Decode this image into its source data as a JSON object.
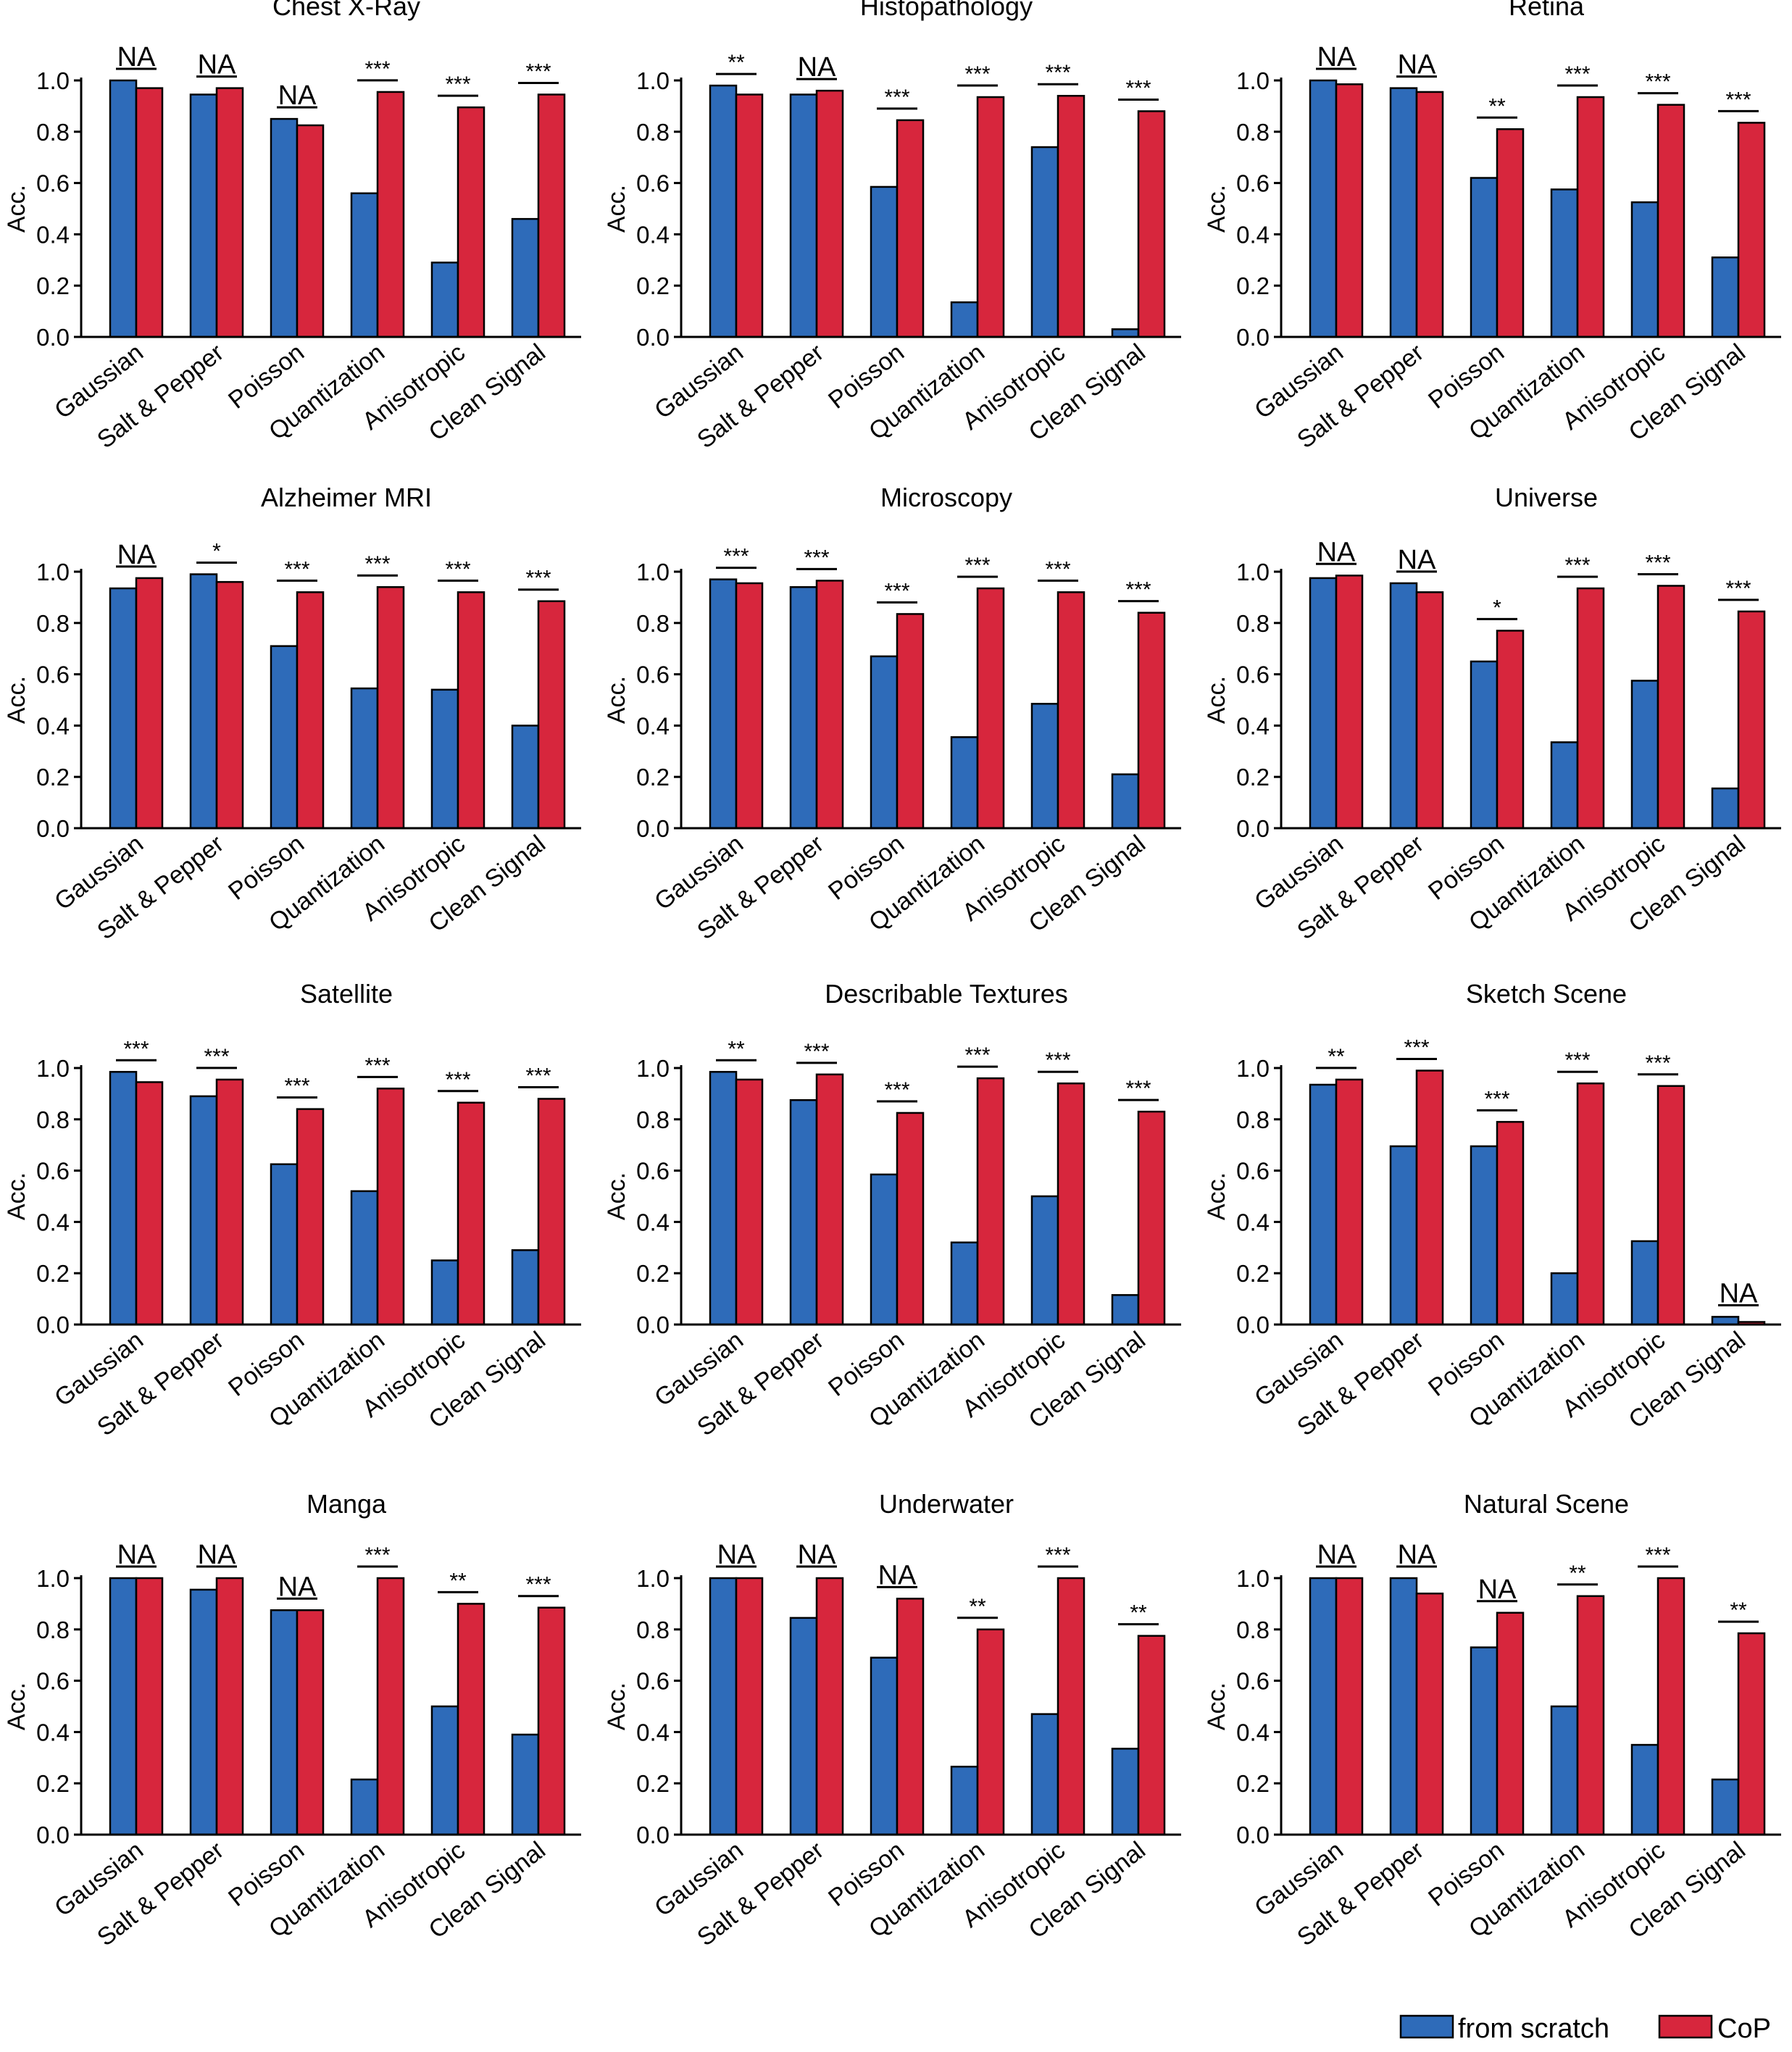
{
  "colors": {
    "from_scratch": "#2e6bb9",
    "cop": "#d7263d",
    "axis": "#000000"
  },
  "legend": {
    "from_scratch": "from scratch",
    "cop": "CoP"
  },
  "chart_data": [
    {
      "type": "bar",
      "title": "Chest X-Ray",
      "ylabel": "Acc.",
      "ylim": [
        0,
        1.0
      ],
      "yticks": [
        "0.0",
        "0.2",
        "0.4",
        "0.6",
        "0.8",
        "1.0"
      ],
      "categories": [
        "Gaussian",
        "Salt & Pepper",
        "Poisson",
        "Quantization",
        "Anisotropic",
        "Clean Signal"
      ],
      "series": [
        {
          "name": "from scratch",
          "values": [
            1.0,
            0.945,
            0.85,
            0.56,
            0.29,
            0.46
          ]
        },
        {
          "name": "CoP",
          "values": [
            0.97,
            0.97,
            0.825,
            0.955,
            0.895,
            0.945
          ]
        }
      ],
      "significance": [
        "NA",
        "NA",
        "NA",
        "***",
        "***",
        "***"
      ]
    },
    {
      "type": "bar",
      "title": "Histopathology",
      "ylabel": "Acc.",
      "ylim": [
        0,
        1.0
      ],
      "yticks": [
        "0.0",
        "0.2",
        "0.4",
        "0.6",
        "0.8",
        "1.0"
      ],
      "categories": [
        "Gaussian",
        "Salt & Pepper",
        "Poisson",
        "Quantization",
        "Anisotropic",
        "Clean Signal"
      ],
      "series": [
        {
          "name": "from scratch",
          "values": [
            0.98,
            0.945,
            0.585,
            0.135,
            0.74,
            0.03
          ]
        },
        {
          "name": "CoP",
          "values": [
            0.945,
            0.96,
            0.845,
            0.935,
            0.94,
            0.88
          ]
        }
      ],
      "significance": [
        "**",
        "NA",
        "***",
        "***",
        "***",
        "***"
      ]
    },
    {
      "type": "bar",
      "title": "Retina",
      "ylabel": "Acc.",
      "ylim": [
        0,
        1.0
      ],
      "yticks": [
        "0.0",
        "0.2",
        "0.4",
        "0.6",
        "0.8",
        "1.0"
      ],
      "categories": [
        "Gaussian",
        "Salt & Pepper",
        "Poisson",
        "Quantization",
        "Anisotropic",
        "Clean Signal"
      ],
      "series": [
        {
          "name": "from scratch",
          "values": [
            1.0,
            0.97,
            0.62,
            0.575,
            0.525,
            0.31
          ]
        },
        {
          "name": "CoP",
          "values": [
            0.985,
            0.955,
            0.81,
            0.935,
            0.905,
            0.835
          ]
        }
      ],
      "significance": [
        "NA",
        "NA",
        "**",
        "***",
        "***",
        "***"
      ]
    },
    {
      "type": "bar",
      "title": "Alzheimer MRI",
      "ylabel": "Acc.",
      "ylim": [
        0,
        1.0
      ],
      "yticks": [
        "0.0",
        "0.2",
        "0.4",
        "0.6",
        "0.8",
        "1.0"
      ],
      "categories": [
        "Gaussian",
        "Salt & Pepper",
        "Poisson",
        "Quantization",
        "Anisotropic",
        "Clean Signal"
      ],
      "series": [
        {
          "name": "from scratch",
          "values": [
            0.935,
            0.99,
            0.71,
            0.545,
            0.54,
            0.4
          ]
        },
        {
          "name": "CoP",
          "values": [
            0.975,
            0.96,
            0.92,
            0.94,
            0.92,
            0.885
          ]
        }
      ],
      "significance": [
        "NA",
        "*",
        "***",
        "***",
        "***",
        "***"
      ]
    },
    {
      "type": "bar",
      "title": "Microscopy",
      "ylabel": "Acc.",
      "ylim": [
        0,
        1.0
      ],
      "yticks": [
        "0.0",
        "0.2",
        "0.4",
        "0.6",
        "0.8",
        "1.0"
      ],
      "categories": [
        "Gaussian",
        "Salt & Pepper",
        "Poisson",
        "Quantization",
        "Anisotropic",
        "Clean Signal"
      ],
      "series": [
        {
          "name": "from scratch",
          "values": [
            0.97,
            0.94,
            0.67,
            0.355,
            0.485,
            0.21
          ]
        },
        {
          "name": "CoP",
          "values": [
            0.955,
            0.965,
            0.835,
            0.935,
            0.92,
            0.84
          ]
        }
      ],
      "significance": [
        "***",
        "***",
        "***",
        "***",
        "***",
        "***"
      ]
    },
    {
      "type": "bar",
      "title": "Universe",
      "ylabel": "Acc.",
      "ylim": [
        0,
        1.0
      ],
      "yticks": [
        "0.0",
        "0.2",
        "0.4",
        "0.6",
        "0.8",
        "1.0"
      ],
      "categories": [
        "Gaussian",
        "Salt & Pepper",
        "Poisson",
        "Quantization",
        "Anisotropic",
        "Clean Signal"
      ],
      "series": [
        {
          "name": "from scratch",
          "values": [
            0.975,
            0.955,
            0.65,
            0.335,
            0.575,
            0.155
          ]
        },
        {
          "name": "CoP",
          "values": [
            0.985,
            0.92,
            0.77,
            0.935,
            0.945,
            0.845
          ]
        }
      ],
      "significance": [
        "NA",
        "NA",
        "*",
        "***",
        "***",
        "***"
      ]
    },
    {
      "type": "bar",
      "title": "Satellite",
      "ylabel": "Acc.",
      "ylim": [
        0,
        1.0
      ],
      "yticks": [
        "0.0",
        "0.2",
        "0.4",
        "0.6",
        "0.8",
        "1.0"
      ],
      "categories": [
        "Gaussian",
        "Salt & Pepper",
        "Poisson",
        "Quantization",
        "Anisotropic",
        "Clean Signal"
      ],
      "series": [
        {
          "name": "from scratch",
          "values": [
            0.985,
            0.89,
            0.625,
            0.52,
            0.25,
            0.29
          ]
        },
        {
          "name": "CoP",
          "values": [
            0.945,
            0.955,
            0.84,
            0.92,
            0.865,
            0.88
          ]
        }
      ],
      "significance": [
        "***",
        "***",
        "***",
        "***",
        "***",
        "***"
      ]
    },
    {
      "type": "bar",
      "title": "Describable Textures",
      "ylabel": "Acc.",
      "ylim": [
        0,
        1.0
      ],
      "yticks": [
        "0.0",
        "0.2",
        "0.4",
        "0.6",
        "0.8",
        "1.0"
      ],
      "categories": [
        "Gaussian",
        "Salt & Pepper",
        "Poisson",
        "Quantization",
        "Anisotropic",
        "Clean Signal"
      ],
      "series": [
        {
          "name": "from scratch",
          "values": [
            0.985,
            0.875,
            0.585,
            0.32,
            0.5,
            0.115
          ]
        },
        {
          "name": "CoP",
          "values": [
            0.955,
            0.975,
            0.825,
            0.96,
            0.94,
            0.83
          ]
        }
      ],
      "significance": [
        "**",
        "***",
        "***",
        "***",
        "***",
        "***"
      ]
    },
    {
      "type": "bar",
      "title": "Sketch Scene",
      "ylabel": "Acc.",
      "ylim": [
        0,
        1.0
      ],
      "yticks": [
        "0.0",
        "0.2",
        "0.4",
        "0.6",
        "0.8",
        "1.0"
      ],
      "categories": [
        "Gaussian",
        "Salt & Pepper",
        "Poisson",
        "Quantization",
        "Anisotropic",
        "Clean Signal"
      ],
      "series": [
        {
          "name": "from scratch",
          "values": [
            0.935,
            0.695,
            0.695,
            0.2,
            0.325,
            0.03
          ]
        },
        {
          "name": "CoP",
          "values": [
            0.955,
            0.99,
            0.79,
            0.94,
            0.93,
            0.01
          ]
        }
      ],
      "significance": [
        "**",
        "***",
        "***",
        "***",
        "***",
        "NA"
      ]
    },
    {
      "type": "bar",
      "title": "Manga",
      "ylabel": "Acc.",
      "ylim": [
        0,
        1.0
      ],
      "yticks": [
        "0.0",
        "0.2",
        "0.4",
        "0.6",
        "0.8",
        "1.0"
      ],
      "categories": [
        "Gaussian",
        "Salt & Pepper",
        "Poisson",
        "Quantization",
        "Anisotropic",
        "Clean Signal"
      ],
      "series": [
        {
          "name": "from scratch",
          "values": [
            1.0,
            0.955,
            0.875,
            0.215,
            0.5,
            0.39
          ]
        },
        {
          "name": "CoP",
          "values": [
            1.0,
            1.0,
            0.875,
            1.0,
            0.9,
            0.885
          ]
        }
      ],
      "significance": [
        "NA",
        "NA",
        "NA",
        "***",
        "**",
        "***"
      ]
    },
    {
      "type": "bar",
      "title": "Underwater",
      "ylabel": "Acc.",
      "ylim": [
        0,
        1.0
      ],
      "yticks": [
        "0.0",
        "0.2",
        "0.4",
        "0.6",
        "0.8",
        "1.0"
      ],
      "categories": [
        "Gaussian",
        "Salt & Pepper",
        "Poisson",
        "Quantization",
        "Anisotropic",
        "Clean Signal"
      ],
      "series": [
        {
          "name": "from scratch",
          "values": [
            1.0,
            0.845,
            0.69,
            0.265,
            0.47,
            0.335
          ]
        },
        {
          "name": "CoP",
          "values": [
            1.0,
            1.0,
            0.92,
            0.8,
            1.0,
            0.775
          ]
        }
      ],
      "significance": [
        "NA",
        "NA",
        "NA",
        "**",
        "***",
        "**"
      ]
    },
    {
      "type": "bar",
      "title": "Natural Scene",
      "ylabel": "Acc.",
      "ylim": [
        0,
        1.0
      ],
      "yticks": [
        "0.0",
        "0.2",
        "0.4",
        "0.6",
        "0.8",
        "1.0"
      ],
      "categories": [
        "Gaussian",
        "Salt & Pepper",
        "Poisson",
        "Quantization",
        "Anisotropic",
        "Clean Signal"
      ],
      "series": [
        {
          "name": "from scratch",
          "values": [
            1.0,
            1.0,
            0.73,
            0.5,
            0.35,
            0.215
          ]
        },
        {
          "name": "CoP",
          "values": [
            1.0,
            0.94,
            0.865,
            0.93,
            1.0,
            0.785
          ]
        }
      ],
      "significance": [
        "NA",
        "NA",
        "NA",
        "**",
        "***",
        "**"
      ]
    }
  ]
}
